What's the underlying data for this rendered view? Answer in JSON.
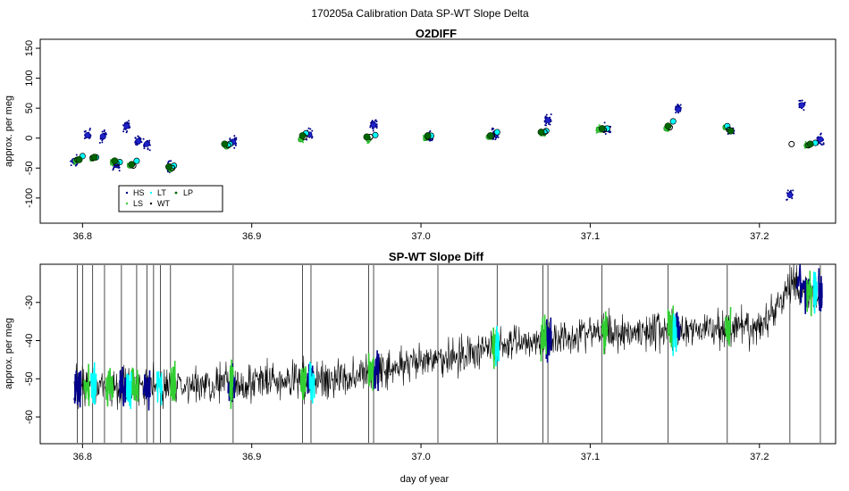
{
  "figure": {
    "main_title": "170205a   Calibration Data SP-WT Slope Delta",
    "xlabel": "day of year"
  },
  "colors": {
    "HS": "#00008b",
    "LS": "#32cd32",
    "LT": "#00ffff",
    "WT": "#000000",
    "LP": "#006400",
    "trace": "#000000"
  },
  "chart_data": [
    {
      "type": "scatter",
      "title": "O2DIFF",
      "xlabel": "",
      "ylabel": "approx. per meg",
      "xlim": [
        36.775,
        37.245
      ],
      "ylim": [
        -142,
        165
      ],
      "xticks": [
        36.8,
        36.9,
        37.0,
        37.1,
        37.2
      ],
      "xtick_labels": [
        "36.8",
        "36.9",
        "37.0",
        "37.1",
        "37.2"
      ],
      "yticks": [
        -100,
        -50,
        0,
        50,
        100,
        150
      ],
      "ytick_labels": [
        "-100",
        "-50",
        "0",
        "50",
        "100",
        "150"
      ],
      "legend": {
        "placement": "bottom-left",
        "entries": [
          "HS",
          "LT",
          "LP",
          "LS",
          "WT"
        ]
      },
      "series": [
        {
          "name": "HS",
          "points": [
            [
              36.795,
              -38
            ],
            [
              36.803,
              5
            ],
            [
              36.812,
              3
            ],
            [
              36.82,
              -45
            ],
            [
              36.826,
              20
            ],
            [
              36.833,
              -5
            ],
            [
              36.838,
              -10
            ],
            [
              36.852,
              -48
            ],
            [
              36.889,
              -6
            ],
            [
              36.934,
              6
            ],
            [
              36.972,
              22
            ],
            [
              37.005,
              2
            ],
            [
              37.044,
              6
            ],
            [
              37.075,
              30
            ],
            [
              37.11,
              15
            ],
            [
              37.152,
              48
            ],
            [
              37.183,
              12
            ],
            [
              37.218,
              -95
            ],
            [
              37.225,
              55
            ],
            [
              37.236,
              -2
            ]
          ]
        },
        {
          "name": "LS",
          "points": [
            [
              36.796,
              -38
            ],
            [
              36.806,
              -34
            ],
            [
              36.818,
              -40
            ],
            [
              36.828,
              -46
            ],
            [
              36.852,
              -52
            ],
            [
              36.885,
              -14
            ],
            [
              36.929,
              -2
            ],
            [
              36.969,
              -2
            ],
            [
              37.003,
              0
            ],
            [
              37.04,
              2
            ],
            [
              37.072,
              8
            ],
            [
              37.105,
              14
            ],
            [
              37.145,
              16
            ],
            [
              37.18,
              18
            ],
            [
              37.228,
              -12
            ]
          ]
        },
        {
          "name": "LT",
          "points": [
            [
              36.8,
              -30
            ],
            [
              36.808,
              -32
            ],
            [
              36.822,
              -40
            ],
            [
              36.832,
              -38
            ],
            [
              36.854,
              -46
            ],
            [
              36.887,
              -10
            ],
            [
              36.932,
              8
            ],
            [
              36.973,
              5
            ],
            [
              37.006,
              4
            ],
            [
              37.045,
              10
            ],
            [
              37.074,
              12
            ],
            [
              37.11,
              16
            ],
            [
              37.149,
              28
            ],
            [
              37.181,
              20
            ],
            [
              37.233,
              -8
            ]
          ]
        },
        {
          "name": "WT",
          "points": [
            [
              36.797,
              -36
            ],
            [
              36.806,
              -33
            ],
            [
              36.82,
              -42
            ],
            [
              36.83,
              -46
            ],
            [
              36.853,
              -50
            ],
            [
              36.886,
              -12
            ],
            [
              36.931,
              2
            ],
            [
              36.97,
              2
            ],
            [
              37.004,
              2
            ],
            [
              37.042,
              4
            ],
            [
              37.073,
              10
            ],
            [
              37.108,
              14
            ],
            [
              37.147,
              18
            ],
            [
              37.182,
              14
            ],
            [
              37.219,
              -10
            ],
            [
              37.229,
              -12
            ]
          ]
        },
        {
          "name": "LP",
          "points": [
            [
              36.798,
              -36
            ],
            [
              36.807,
              -32
            ],
            [
              36.819,
              -38
            ],
            [
              36.829,
              -44
            ],
            [
              36.851,
              -48
            ],
            [
              36.884,
              -10
            ],
            [
              36.93,
              4
            ],
            [
              36.968,
              2
            ],
            [
              37.004,
              4
            ],
            [
              37.041,
              4
            ],
            [
              37.071,
              10
            ],
            [
              37.107,
              16
            ],
            [
              37.146,
              20
            ],
            [
              37.183,
              12
            ],
            [
              37.23,
              -10
            ]
          ]
        }
      ]
    },
    {
      "type": "line",
      "title": "SP-WT Slope Diff",
      "xlabel": "day of year",
      "ylabel": "approx. per meg",
      "xlim": [
        36.775,
        37.245
      ],
      "ylim": [
        -67,
        -20
      ],
      "xticks": [
        36.8,
        36.9,
        37.0,
        37.1,
        37.2
      ],
      "xtick_labels": [
        "36.8",
        "36.9",
        "37.0",
        "37.1",
        "37.2"
      ],
      "yticks": [
        -60,
        -50,
        -40,
        -30
      ],
      "ytick_labels": [
        "-60",
        "-50",
        "-40",
        "-30"
      ],
      "trend": {
        "x": [
          36.795,
          36.85,
          36.9,
          36.95,
          37.0,
          37.05,
          37.1,
          37.15,
          37.2,
          37.22,
          37.235
        ],
        "y": [
          -52,
          -52,
          -51,
          -50,
          -46,
          -41,
          -38,
          -37,
          -37,
          -25,
          -28
        ]
      },
      "spikes_x": [
        36.797,
        36.8,
        36.806,
        36.813,
        36.823,
        36.832,
        36.838,
        36.842,
        36.846,
        36.852,
        36.889,
        36.93,
        36.935,
        36.969,
        36.972,
        37.01,
        37.045,
        37.072,
        37.075,
        37.107,
        37.146,
        37.181,
        37.218,
        37.236
      ],
      "segments": [
        {
          "name": "HS",
          "x_ranges": [
            [
              36.795,
              36.799
            ],
            [
              36.822,
              36.826
            ],
            [
              36.836,
              36.84
            ],
            [
              36.886,
              36.89
            ],
            [
              36.933,
              36.936
            ],
            [
              36.972,
              36.975
            ],
            [
              37.074,
              37.077
            ],
            [
              37.15,
              37.153
            ],
            [
              37.222,
              37.23
            ],
            [
              37.235,
              37.237
            ]
          ]
        },
        {
          "name": "LS",
          "x_ranges": [
            [
              36.801,
              36.804
            ],
            [
              36.814,
              36.818
            ],
            [
              36.829,
              36.833
            ],
            [
              36.852,
              36.855
            ],
            [
              36.887,
              36.889
            ],
            [
              36.929,
              36.932
            ],
            [
              36.969,
              36.972
            ],
            [
              37.042,
              37.045
            ],
            [
              37.071,
              37.074
            ],
            [
              37.107,
              37.11
            ],
            [
              37.146,
              37.149
            ],
            [
              37.18,
              37.183
            ],
            [
              37.228,
              37.231
            ]
          ]
        },
        {
          "name": "LT",
          "x_ranges": [
            [
              36.805,
              36.808
            ],
            [
              36.826,
              36.829
            ],
            [
              36.844,
              36.847
            ],
            [
              36.934,
              36.937
            ],
            [
              37.044,
              37.046
            ],
            [
              37.149,
              37.151
            ],
            [
              37.232,
              37.234
            ]
          ]
        }
      ]
    }
  ]
}
